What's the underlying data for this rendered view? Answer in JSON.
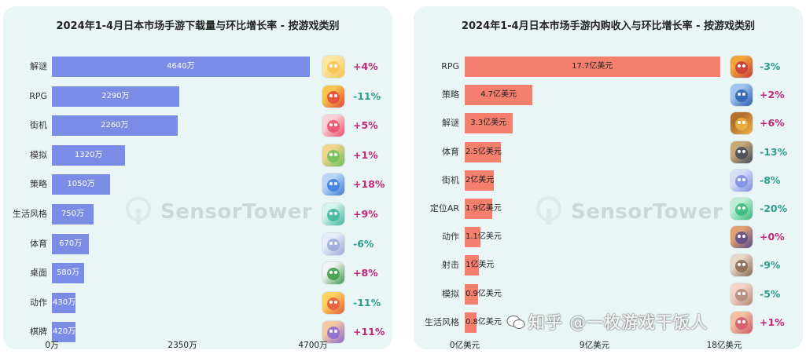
{
  "chart_data": [
    {
      "type": "bar",
      "orientation": "horizontal",
      "title": "2024年1-4月日本市场手游下载量与环比增长率 - 按游戏类别",
      "categories": [
        "解谜",
        "RPG",
        "街机",
        "模拟",
        "策略",
        "生活风格",
        "体育",
        "桌面",
        "动作",
        "棋牌"
      ],
      "values": [
        4640,
        2290,
        2260,
        1320,
        1050,
        750,
        670,
        580,
        430,
        420
      ],
      "value_labels": [
        "4640万",
        "2290万",
        "2260万",
        "1320万",
        "1050万",
        "750万",
        "670万",
        "580万",
        "430万",
        "420万"
      ],
      "value_unit": "万",
      "changes": [
        "+4%",
        "-11%",
        "+5%",
        "+1%",
        "+18%",
        "+9%",
        "-6%",
        "+8%",
        "-11%",
        "+11%"
      ],
      "xlim": [
        0,
        4700
      ],
      "xticks": [
        "0万",
        "2350万",
        "4700万"
      ],
      "bar_color": "#7b8ce6",
      "positive_color": "#c2257a",
      "negative_color": "#2e9e8c"
    },
    {
      "type": "bar",
      "orientation": "horizontal",
      "title": "2024年1-4月日本市场手游内购收入与环比增长率 - 按游戏类别",
      "categories": [
        "RPG",
        "策略",
        "解谜",
        "体育",
        "街机",
        "定位AR",
        "动作",
        "射击",
        "模拟",
        "生活风格"
      ],
      "values": [
        17.7,
        4.7,
        3.3,
        2.5,
        2.0,
        1.9,
        1.1,
        1.0,
        0.9,
        0.8
      ],
      "value_labels": [
        "17.7亿美元",
        "4.7亿美元",
        "3.3亿美元",
        "2.5亿美元",
        "2亿美元",
        "1.9亿美元",
        "1.1亿美元",
        "1亿美元",
        "0.9亿美元",
        "0.8亿美元"
      ],
      "value_unit": "亿美元",
      "changes": [
        "-3%",
        "+2%",
        "+6%",
        "-13%",
        "-8%",
        "-20%",
        "+0%",
        "-9%",
        "-5%",
        "+1%"
      ],
      "xlim": [
        0,
        18
      ],
      "xticks": [
        "0亿美元",
        "9亿美元",
        "18亿美元"
      ],
      "bar_color": "#f47f6d",
      "positive_color": "#c2257a",
      "negative_color": "#2e9e8c"
    }
  ],
  "watermark": "SensorTower",
  "site_watermark": "知乎 @一枚游戏干饭人",
  "icons_left": [
    "duck-game-icon",
    "puzzle-game-icon",
    "drum-game-icon",
    "cooking-game-icon",
    "number-merge-game-icon",
    "snorlax-game-icon",
    "anime-sports-game-icon",
    "board-game-icon",
    "action-game-icon",
    "card-game-icon"
  ],
  "icons_right": [
    "monster-rpg-icon",
    "planet-strategy-icon",
    "puzzle-royal-icon",
    "baseball-game-icon",
    "anime-arcade-icon",
    "pokemon-go-icon",
    "action-anime-icon",
    "shooter-anime-icon",
    "simulation-girl-icon",
    "lifestyle-game-icon"
  ]
}
